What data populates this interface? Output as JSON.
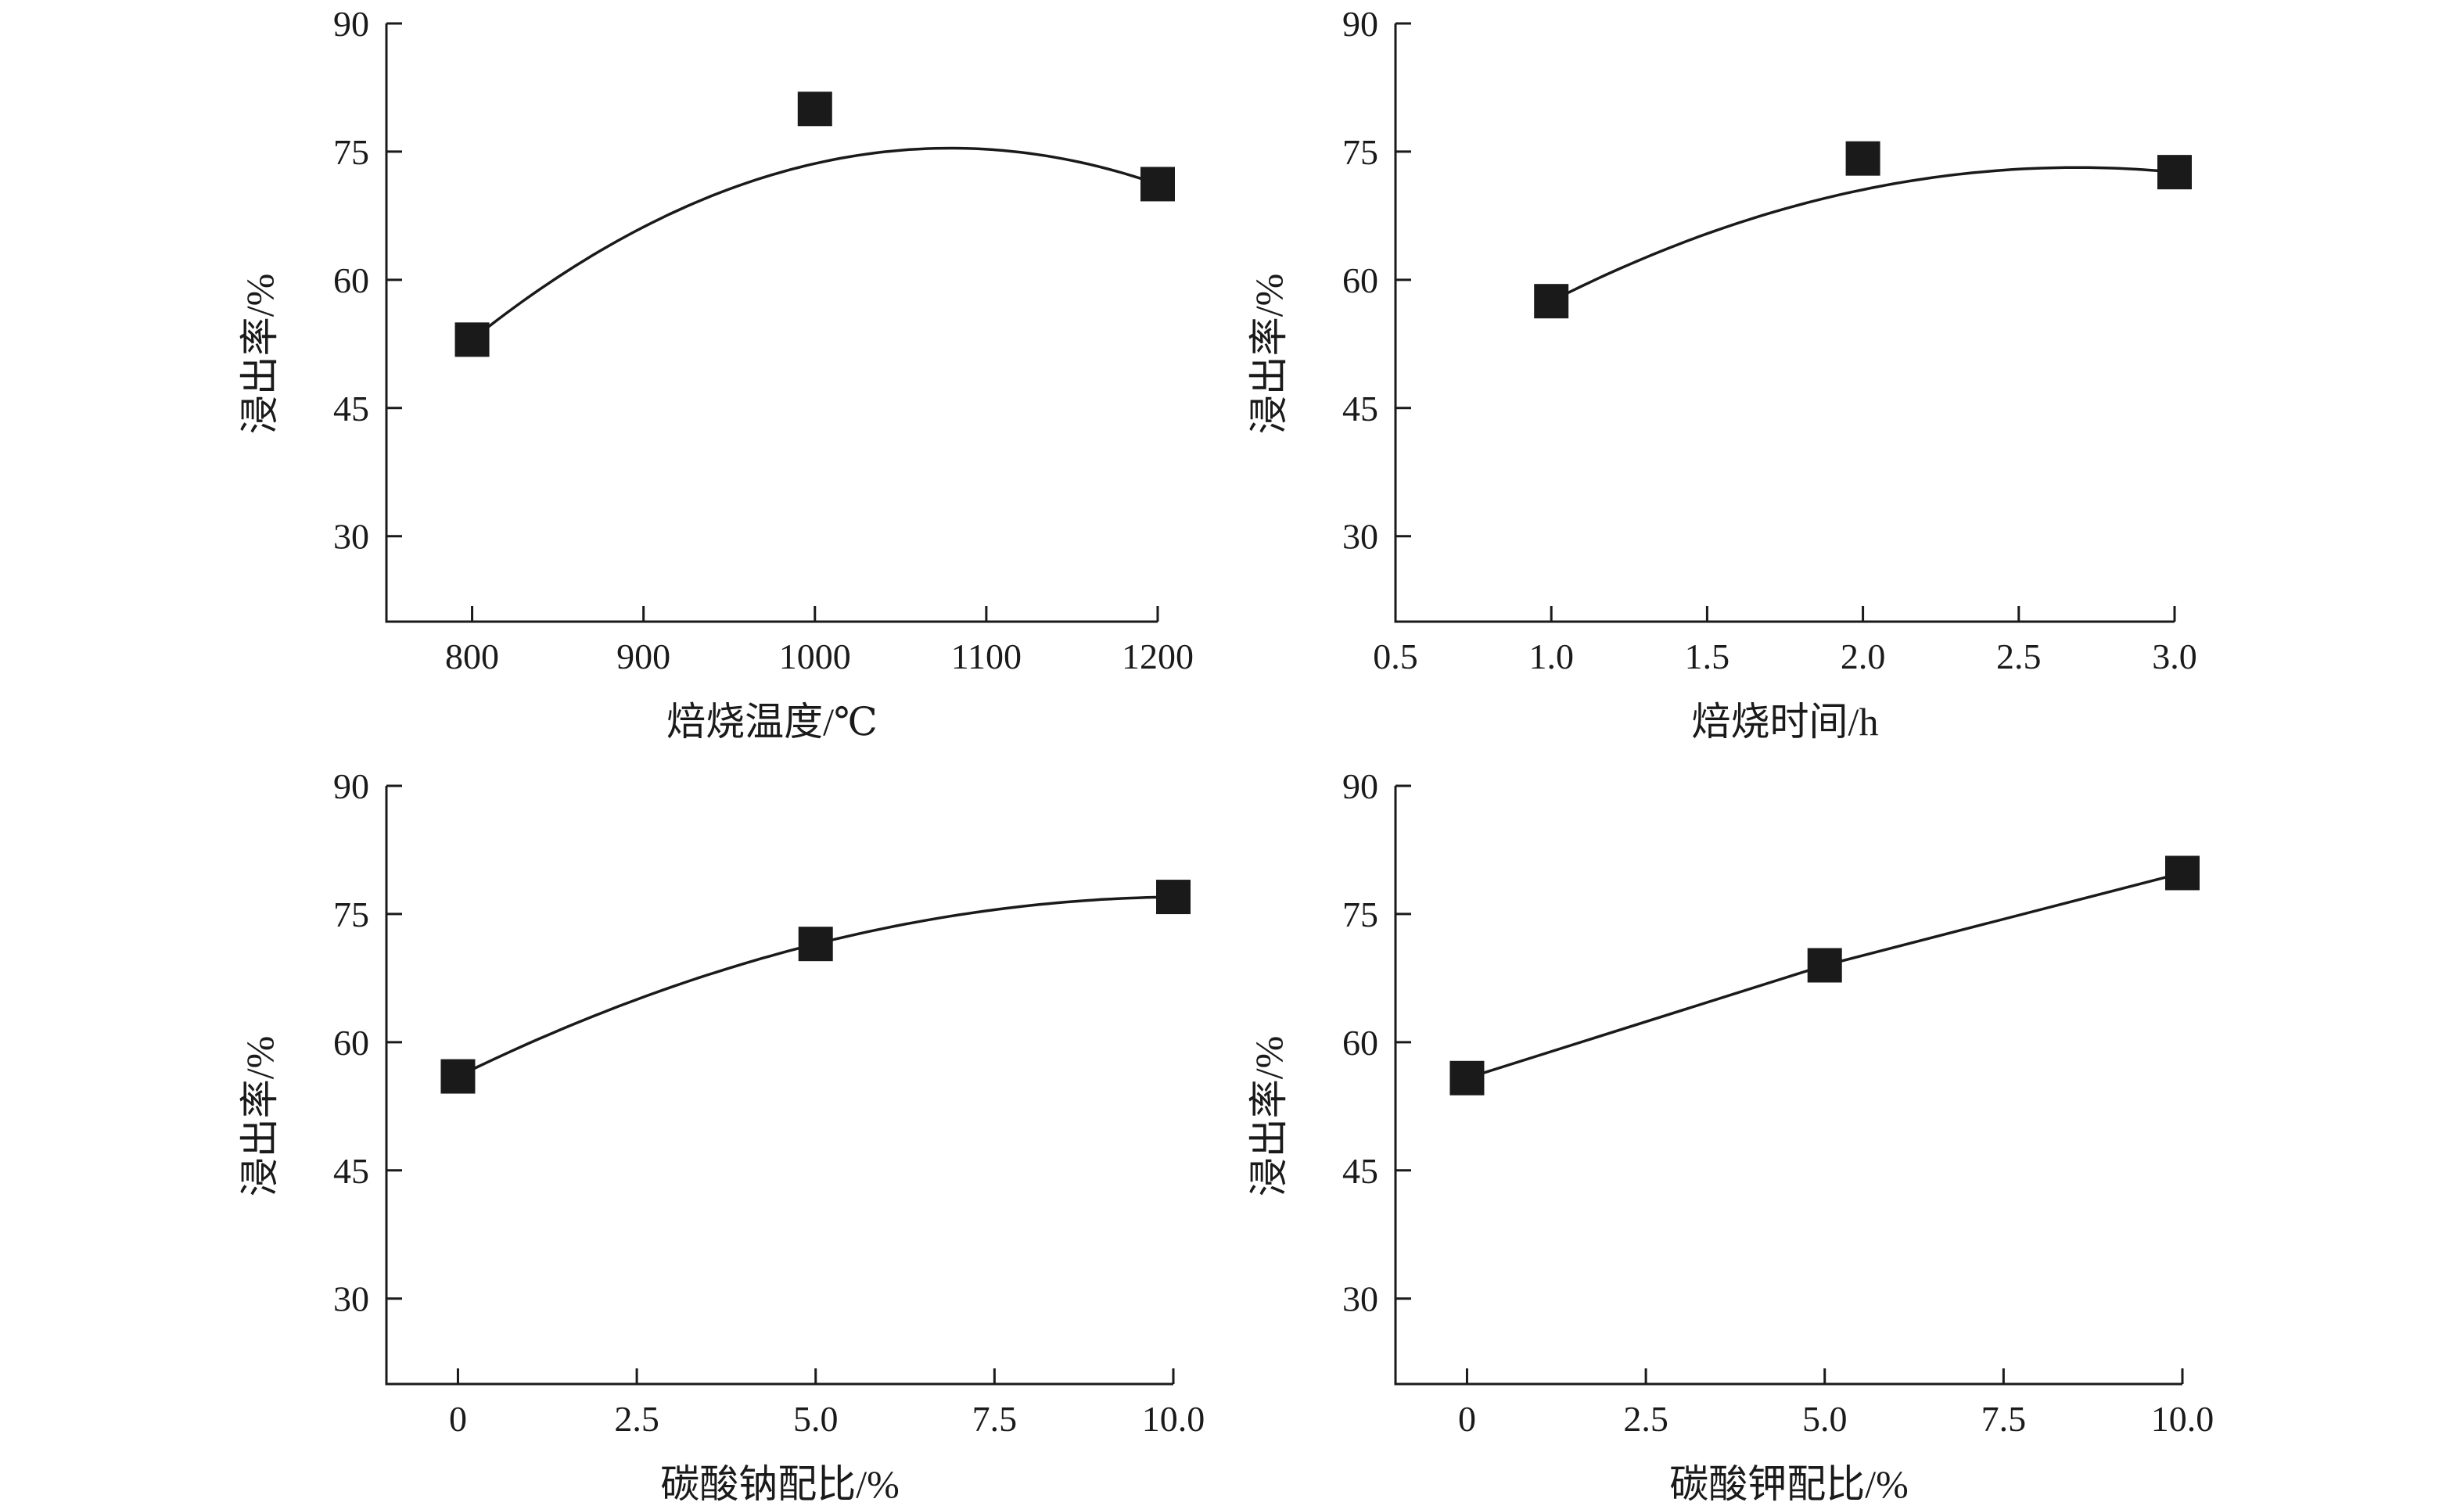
{
  "chart_data": [
    {
      "type": "scatter",
      "title": "",
      "xlabel": "焙烧温度/℃",
      "ylabel": "浸出率/%",
      "xlim": [
        750,
        1200
      ],
      "ylim": [
        20,
        90
      ],
      "xticks": [
        800,
        900,
        1000,
        1100,
        1200
      ],
      "xtick_labels": [
        "800",
        "900",
        "1000",
        "1100",
        "1200"
      ],
      "yticks": [
        30,
        45,
        60,
        75,
        90
      ],
      "ytick_labels": [
        "30",
        "45",
        "60",
        "75",
        "90"
      ],
      "grid": false,
      "series": [
        {
          "x": [
            800,
            1000,
            1200
          ],
          "y": [
            53,
            80,
            71.2
          ],
          "marker": "square",
          "fit": "curve"
        }
      ]
    },
    {
      "type": "scatter",
      "title": "",
      "xlabel": "焙烧时间/h",
      "ylabel": "浸出率/%",
      "xlim": [
        0.5,
        3.0
      ],
      "ylim": [
        20,
        90
      ],
      "xticks": [
        0.5,
        1.0,
        1.5,
        2.0,
        2.5,
        3.0
      ],
      "xtick_labels": [
        "0.5",
        "1.0",
        "1.5",
        "2.0",
        "2.5",
        "3.0"
      ],
      "yticks": [
        30,
        45,
        60,
        75,
        90
      ],
      "ytick_labels": [
        "30",
        "45",
        "60",
        "75",
        "90"
      ],
      "grid": false,
      "series": [
        {
          "x": [
            1.0,
            2.0,
            3.0
          ],
          "y": [
            57.5,
            74.2,
            72.6
          ],
          "marker": "square",
          "fit": "curve"
        }
      ]
    },
    {
      "type": "scatter",
      "title": "",
      "xlabel": "碳酸钠配比/%",
      "ylabel": "浸出率/%",
      "xlim": [
        -1,
        10
      ],
      "ylim": [
        20,
        90
      ],
      "xticks": [
        0,
        2.5,
        5.0,
        7.5,
        10.0
      ],
      "xtick_labels": [
        "0",
        "2.5",
        "5.0",
        "7.5",
        "10.0"
      ],
      "yticks": [
        30,
        45,
        60,
        75,
        90
      ],
      "ytick_labels": [
        "30",
        "45",
        "60",
        "75",
        "90"
      ],
      "grid": false,
      "series": [
        {
          "x": [
            0,
            5.0,
            10.0
          ],
          "y": [
            56,
            71.5,
            77
          ],
          "marker": "square",
          "fit": "curve"
        }
      ]
    },
    {
      "type": "scatter",
      "title": "",
      "xlabel": "碳酸钾配比/%",
      "ylabel": "浸出率/%",
      "xlim": [
        -1,
        10
      ],
      "ylim": [
        20,
        90
      ],
      "xticks": [
        0,
        2.5,
        5.0,
        7.5,
        10.0
      ],
      "xtick_labels": [
        "0",
        "2.5",
        "5.0",
        "7.5",
        "10.0"
      ],
      "yticks": [
        30,
        45,
        60,
        75,
        90
      ],
      "ytick_labels": [
        "30",
        "45",
        "60",
        "75",
        "90"
      ],
      "grid": false,
      "series": [
        {
          "x": [
            0,
            5.0,
            10.0
          ],
          "y": [
            55.8,
            69,
            79.8
          ],
          "marker": "square",
          "fit": "line"
        }
      ]
    }
  ]
}
